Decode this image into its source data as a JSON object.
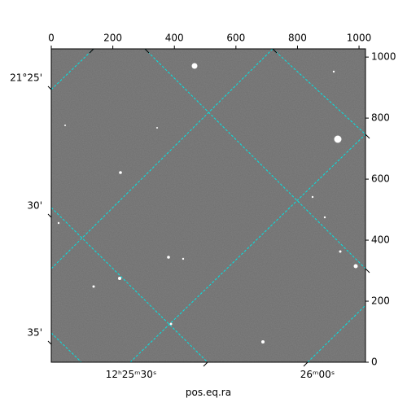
{
  "chart_data": {
    "type": "image",
    "x_label": "pos.eq.ra",
    "xlim": [
      0,
      1021
    ],
    "xticks": [
      0,
      200,
      400,
      600,
      800,
      1000
    ],
    "ylim": [
      0,
      1027
    ],
    "yticks": [
      0,
      200,
      400,
      600,
      800,
      1000
    ],
    "ra_ticks": [
      "12ʰ25ᵐ30ˢ",
      "26ᵐ00ˢ"
    ],
    "dec_ticks": [
      "21°25'",
      "30'",
      "35'"
    ],
    "grid_color": "#00e5e5"
  }
}
